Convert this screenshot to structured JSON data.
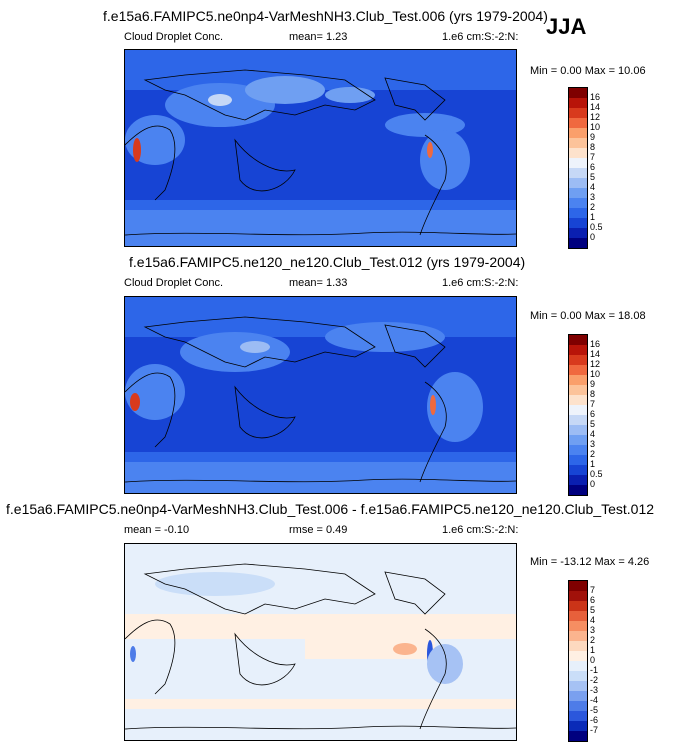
{
  "season": "JJA",
  "colors": {
    "abs_scale": [
      "#00007f",
      "#0a1fb0",
      "#1744d4",
      "#2d66e8",
      "#4b83f0",
      "#6f9ff2",
      "#9cbcf4",
      "#c6d8f6",
      "#eef3fb",
      "#fde2cc",
      "#fcc39a",
      "#fa9f6b",
      "#f0693f",
      "#d83a1d",
      "#b81409",
      "#7f0000"
    ],
    "diff_scale": [
      "#00007f",
      "#0a2bb8",
      "#2b57dc",
      "#4e7ce8",
      "#7aa0ef",
      "#a6c2f4",
      "#cadef8",
      "#e7f0fb",
      "#fff0e3",
      "#fdd9bf",
      "#fbb48e",
      "#f68e62",
      "#e7603b",
      "#cb3418",
      "#a1110a",
      "#7f0000"
    ],
    "land_outline": "#000000"
  },
  "panels": [
    {
      "title": "f.e15a6.FAMIPC5.ne0np4-VarMeshNH3.Club_Test.006 (yrs 1979-2004)",
      "left_label": "Cloud Droplet Conc.",
      "stat": "mean=   1.23",
      "units": "1.e6 cm:S:-2:N:",
      "minmax": "Min =   0.00 Max =  10.06",
      "ticks": [
        "16",
        "14",
        "12",
        "10",
        "9",
        "8",
        "7",
        "6",
        "5",
        "4",
        "3",
        "2",
        "1",
        "0.5",
        "0"
      ]
    },
    {
      "title": "f.e15a6.FAMIPC5.ne120_ne120.Club_Test.012 (yrs 1979-2004)",
      "left_label": "Cloud Droplet Conc.",
      "stat": "mean=   1.33",
      "units": "1.e6 cm:S:-2:N:",
      "minmax": "Min =   0.00 Max =  18.08",
      "ticks": [
        "16",
        "14",
        "12",
        "10",
        "9",
        "8",
        "7",
        "6",
        "5",
        "4",
        "3",
        "2",
        "1",
        "0.5",
        "0"
      ]
    },
    {
      "title": "f.e15a6.FAMIPC5.ne0np4-VarMeshNH3.Club_Test.006 - f.e15a6.FAMIPC5.ne120_ne120.Club_Test.012",
      "left_label": "mean =  -0.10",
      "stat": "rmse =   0.49",
      "units": "1.e6 cm:S:-2:N:",
      "minmax": "Min = -13.12 Max =   4.26",
      "ticks": [
        "7",
        "6",
        "5",
        "4",
        "3",
        "2",
        "1",
        "0",
        "-1",
        "-2",
        "-3",
        "-4",
        "-5",
        "-6",
        "-7"
      ]
    }
  ],
  "chart_data": [
    {
      "type": "heatmap",
      "title": "f.e15a6.FAMIPC5.ne0np4-VarMeshNH3.Club_Test.006 (yrs 1979-2004)",
      "variable": "Cloud Droplet Conc.",
      "units": "1.e6 cm:S:-2:N:",
      "mean": 1.23,
      "min": 0.0,
      "max": 10.06,
      "levels": [
        0,
        0.5,
        1,
        2,
        3,
        4,
        5,
        6,
        7,
        8,
        9,
        10,
        12,
        14,
        16
      ]
    },
    {
      "type": "heatmap",
      "title": "f.e15a6.FAMIPC5.ne120_ne120.Club_Test.012 (yrs 1979-2004)",
      "variable": "Cloud Droplet Conc.",
      "units": "1.e6 cm:S:-2:N:",
      "mean": 1.33,
      "min": 0.0,
      "max": 18.08,
      "levels": [
        0,
        0.5,
        1,
        2,
        3,
        4,
        5,
        6,
        7,
        8,
        9,
        10,
        12,
        14,
        16
      ]
    },
    {
      "type": "heatmap",
      "title": "f.e15a6.FAMIPC5.ne0np4-VarMeshNH3.Club_Test.006 - f.e15a6.FAMIPC5.ne120_ne120.Club_Test.012",
      "units": "1.e6 cm:S:-2:N:",
      "mean": -0.1,
      "rmse": 0.49,
      "min": -13.12,
      "max": 4.26,
      "levels": [
        -7,
        -6,
        -5,
        -4,
        -3,
        -2,
        -1,
        0,
        1,
        2,
        3,
        4,
        5,
        6,
        7
      ]
    }
  ]
}
